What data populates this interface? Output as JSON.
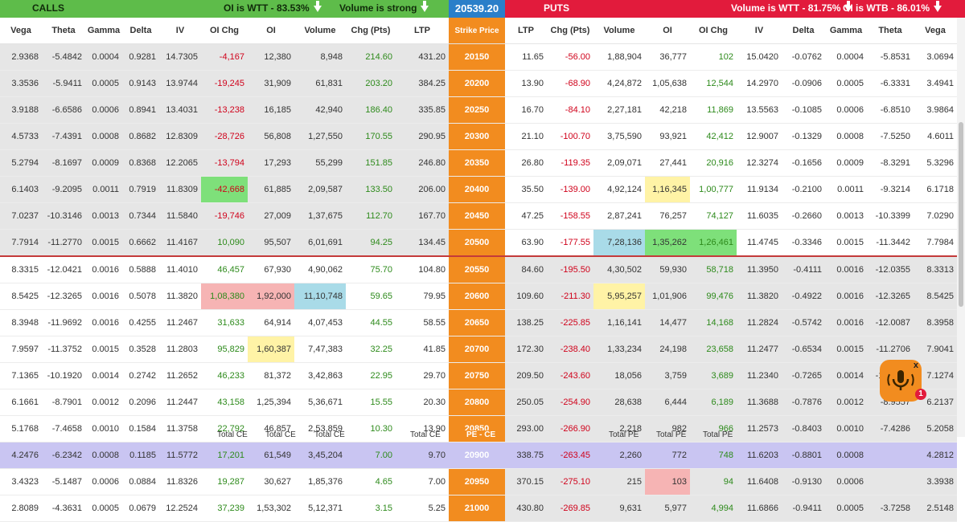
{
  "banners": {
    "calls_title": "CALLS",
    "calls_oi": "OI is WTT - 83.53%",
    "calls_volume": "Volume is strong",
    "spot_price": "20539.20",
    "puts_title": "PUTS",
    "puts_volume": "Volume is WTT - 81.75%",
    "puts_oi": "OI is WTB - 86.01%"
  },
  "columns": [
    "Vega",
    "Theta",
    "Gamma",
    "Delta",
    "IV",
    "OI Chg",
    "OI",
    "Volume",
    "Chg (Pts)",
    "LTP",
    "Strike Price",
    "LTP",
    "Chg (Pts)",
    "Volume",
    "OI",
    "OI Chg",
    "IV",
    "Delta",
    "Gamma",
    "Theta",
    "Vega"
  ],
  "rows": [
    {
      "strike": "20150",
      "c": [
        "2.9368",
        "-5.4842",
        "0.0004",
        "0.9281",
        "14.7305",
        "-4,167",
        "12,380",
        "8,948",
        "214.60",
        "431.20"
      ],
      "p": [
        "11.65",
        "-56.00",
        "1,88,904",
        "36,777",
        "102",
        "15.0420",
        "-0.0762",
        "0.0004",
        "-5.8531",
        "3.0694"
      ]
    },
    {
      "strike": "20200",
      "c": [
        "3.3536",
        "-5.9411",
        "0.0005",
        "0.9143",
        "13.9744",
        "-19,245",
        "31,909",
        "61,831",
        "203.20",
        "384.25"
      ],
      "p": [
        "13.90",
        "-68.90",
        "4,24,872",
        "1,05,638",
        "12,544",
        "14.2970",
        "-0.0906",
        "0.0005",
        "-6.3331",
        "3.4941"
      ]
    },
    {
      "strike": "20250",
      "c": [
        "3.9188",
        "-6.6586",
        "0.0006",
        "0.8941",
        "13.4031",
        "-13,238",
        "16,185",
        "42,940",
        "186.40",
        "335.85"
      ],
      "p": [
        "16.70",
        "-84.10",
        "2,27,181",
        "42,218",
        "11,869",
        "13.5563",
        "-0.1085",
        "0.0006",
        "-6.8510",
        "3.9864"
      ]
    },
    {
      "strike": "20300",
      "c": [
        "4.5733",
        "-7.4391",
        "0.0008",
        "0.8682",
        "12.8309",
        "-28,726",
        "56,808",
        "1,27,550",
        "170.55",
        "290.95"
      ],
      "p": [
        "21.10",
        "-100.70",
        "3,75,590",
        "93,921",
        "42,412",
        "12.9007",
        "-0.1329",
        "0.0008",
        "-7.5250",
        "4.6011"
      ]
    },
    {
      "strike": "20350",
      "c": [
        "5.2794",
        "-8.1697",
        "0.0009",
        "0.8368",
        "12.2065",
        "-13,794",
        "17,293",
        "55,299",
        "151.85",
        "246.80"
      ],
      "p": [
        "26.80",
        "-119.35",
        "2,09,071",
        "27,441",
        "20,916",
        "12.3274",
        "-0.1656",
        "0.0009",
        "-8.3291",
        "5.3296"
      ]
    },
    {
      "strike": "20400",
      "c": [
        "6.1403",
        "-9.2095",
        "0.0011",
        "0.7919",
        "11.8309",
        "-42,668",
        "61,885",
        "2,09,587",
        "133.50",
        "206.00"
      ],
      "p": [
        "35.50",
        "-139.00",
        "4,92,124",
        "1,16,345",
        "1,00,777",
        "11.9134",
        "-0.2100",
        "0.0011",
        "-9.3214",
        "6.1718"
      ]
    },
    {
      "strike": "20450",
      "c": [
        "7.0237",
        "-10.3146",
        "0.0013",
        "0.7344",
        "11.5840",
        "-19,746",
        "27,009",
        "1,37,675",
        "112.70",
        "167.70"
      ],
      "p": [
        "47.25",
        "-158.55",
        "2,87,241",
        "76,257",
        "74,127",
        "11.6035",
        "-0.2660",
        "0.0013",
        "-10.3399",
        "7.0290"
      ]
    },
    {
      "strike": "20500",
      "c": [
        "7.7914",
        "-11.2770",
        "0.0015",
        "0.6662",
        "11.4167",
        "10,090",
        "95,507",
        "6,01,691",
        "94.25",
        "134.45"
      ],
      "p": [
        "63.90",
        "-177.55",
        "7,28,136",
        "1,35,262",
        "1,26,461",
        "11.4745",
        "-0.3346",
        "0.0015",
        "-11.3442",
        "7.7984"
      ]
    },
    {
      "strike": "20550",
      "c": [
        "8.3315",
        "-12.0421",
        "0.0016",
        "0.5888",
        "11.4010",
        "46,457",
        "67,930",
        "4,90,062",
        "75.70",
        "104.80"
      ],
      "p": [
        "84.60",
        "-195.50",
        "4,30,502",
        "59,930",
        "58,718",
        "11.3950",
        "-0.4111",
        "0.0016",
        "-12.0355",
        "8.3313"
      ]
    },
    {
      "strike": "20600",
      "c": [
        "8.5425",
        "-12.3265",
        "0.0016",
        "0.5078",
        "11.3820",
        "1,08,380",
        "1,92,000",
        "11,10,748",
        "59.65",
        "79.95"
      ],
      "p": [
        "109.60",
        "-211.30",
        "5,95,257",
        "1,01,906",
        "99,476",
        "11.3820",
        "-0.4922",
        "0.0016",
        "-12.3265",
        "8.5425"
      ]
    },
    {
      "strike": "20650",
      "c": [
        "8.3948",
        "-11.9692",
        "0.0016",
        "0.4255",
        "11.2467",
        "31,633",
        "64,914",
        "4,07,453",
        "44.55",
        "58.55"
      ],
      "p": [
        "138.25",
        "-225.85",
        "1,16,141",
        "14,477",
        "14,168",
        "11.2824",
        "-0.5742",
        "0.0016",
        "-12.0087",
        "8.3958"
      ]
    },
    {
      "strike": "20700",
      "c": [
        "7.9597",
        "-11.3752",
        "0.0015",
        "0.3528",
        "11.2803",
        "95,829",
        "1,60,387",
        "7,47,383",
        "32.25",
        "41.85"
      ],
      "p": [
        "172.30",
        "-238.40",
        "1,33,234",
        "24,198",
        "23,658",
        "11.2477",
        "-0.6534",
        "0.0015",
        "-11.2706",
        "7.9041"
      ]
    },
    {
      "strike": "20750",
      "c": [
        "7.1365",
        "-10.1920",
        "0.0014",
        "0.2742",
        "11.2652",
        "46,233",
        "81,372",
        "3,42,863",
        "22.95",
        "29.70"
      ],
      "p": [
        "209.50",
        "-243.60",
        "18,056",
        "3,759",
        "3,689",
        "11.2340",
        "-0.7265",
        "0.0014",
        "-10.1508",
        "7.1274"
      ]
    },
    {
      "strike": "20800",
      "c": [
        "6.1661",
        "-8.7901",
        "0.0012",
        "0.2096",
        "11.2447",
        "43,158",
        "1,25,394",
        "5,36,671",
        "15.55",
        "20.30"
      ],
      "p": [
        "250.05",
        "-254.90",
        "28,638",
        "6,444",
        "6,189",
        "11.3688",
        "-0.7876",
        "0.0012",
        "-8.9557",
        "6.2137"
      ]
    },
    {
      "strike": "20850",
      "c": [
        "5.1768",
        "-7.4658",
        "0.0010",
        "0.1584",
        "11.3758",
        "22,792",
        "46,857",
        "2,53,859",
        "10.30",
        "13.90"
      ],
      "p": [
        "293.00",
        "-266.90",
        "2,218",
        "982",
        "966",
        "11.2573",
        "-0.8403",
        "0.0010",
        "-7.4286",
        "5.2058"
      ]
    },
    {
      "strike": "20900",
      "c": [
        "4.2476",
        "-6.2342",
        "0.0008",
        "0.1185",
        "11.5772",
        "17,201",
        "61,549",
        "3,45,204",
        "7.00",
        "9.70"
      ],
      "p": [
        "338.75",
        "-263.45",
        "2,260",
        "772",
        "748",
        "11.6203",
        "-0.8801",
        "0.0008",
        "",
        "4.2812"
      ]
    },
    {
      "strike": "20950",
      "c": [
        "3.4323",
        "-5.1487",
        "0.0006",
        "0.0884",
        "11.8326",
        "19,287",
        "30,627",
        "1,85,376",
        "4.65",
        "7.00"
      ],
      "p": [
        "370.15",
        "-275.10",
        "215",
        "103",
        "94",
        "11.6408",
        "-0.9130",
        "0.0006",
        "",
        "3.3938"
      ]
    },
    {
      "strike": "21000",
      "c": [
        "2.8089",
        "-4.3631",
        "0.0005",
        "0.0679",
        "12.2524",
        "37,239",
        "1,53,302",
        "5,12,371",
        "3.15",
        "5.25"
      ],
      "p": [
        "430.80",
        "-269.85",
        "9,631",
        "5,977",
        "4,994",
        "11.6866",
        "-0.9411",
        "0.0005",
        "-3.7258",
        "2.5148"
      ]
    }
  ],
  "totals": {
    "total_ce_1": "Total CE",
    "total_ce_2": "Total CE",
    "total_ce_3": "Total CE",
    "total_ce_4": "Total CE",
    "pe_ce": "PE - CE",
    "total_pe_1": "Total PE",
    "total_pe_2": "Total PE",
    "total_pe_3": "Total PE"
  },
  "widget": {
    "close": "x",
    "badge": "1"
  },
  "colors": {
    "calls": "#5ebc4a",
    "puts": "#e21b3c",
    "strike": "#f28c1f",
    "spot": "#2a7fc9"
  }
}
